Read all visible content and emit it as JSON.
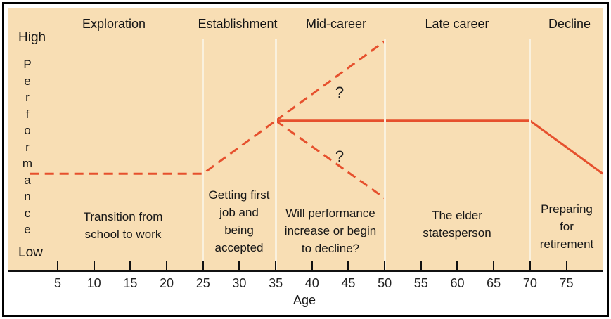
{
  "figure": {
    "background_color": "#F8DEB4",
    "line_color": "#E6502D",
    "divider_color": "#FAF1DE"
  },
  "stages": [
    {
      "label": "Exploration"
    },
    {
      "label": "Establishment"
    },
    {
      "label": "Mid-career"
    },
    {
      "label": "Late career"
    },
    {
      "label": "Decline"
    }
  ],
  "y_axis": {
    "high_label": "High",
    "low_label": "Low",
    "title": "Performance"
  },
  "x_axis": {
    "title": "Age",
    "ticks": [
      5,
      10,
      15,
      20,
      25,
      30,
      35,
      40,
      45,
      50,
      55,
      60,
      65,
      70,
      75
    ]
  },
  "annotations": {
    "exploration_note": "Transition from\nschool to work",
    "establishment_note": "Getting first\njob and\nbeing\naccepted",
    "mid_career_note": "Will performance\nincrease or begin\nto decline?",
    "late_career_note": "The elder\nstatesperson",
    "decline_note": "Preparing\nfor\nretirement",
    "question_upper": "?",
    "question_lower": "?"
  },
  "chart_data": {
    "type": "line",
    "title": "",
    "xlabel": "Age",
    "ylabel": "Performance",
    "x_range_age": [
      0,
      80
    ],
    "y_scale": "qualitative Low to High (perf expressed 0-100)",
    "stage_boundaries_age": [
      25,
      35,
      50,
      70
    ],
    "series": [
      {
        "name": "early-career-growth",
        "style": "dashed",
        "points": [
          {
            "age": 1.2,
            "perf": 32
          },
          {
            "age": 25,
            "perf": 32
          },
          {
            "age": 35,
            "perf": 58
          }
        ]
      },
      {
        "name": "possible-increase",
        "style": "dashed",
        "points": [
          {
            "age": 35,
            "perf": 58
          },
          {
            "age": 50,
            "perf": 97
          }
        ]
      },
      {
        "name": "maintenance-then-decline",
        "style": "solid",
        "points": [
          {
            "age": 35,
            "perf": 58
          },
          {
            "age": 70,
            "perf": 58
          },
          {
            "age": 80,
            "perf": 32
          }
        ]
      },
      {
        "name": "possible-decline",
        "style": "dashed",
        "points": [
          {
            "age": 35,
            "perf": 58
          },
          {
            "age": 50,
            "perf": 20
          }
        ]
      }
    ]
  }
}
